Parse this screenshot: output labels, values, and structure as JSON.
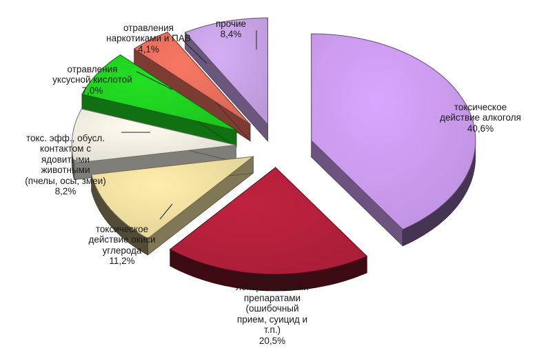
{
  "chart_data": {
    "type": "pie",
    "title": "",
    "exploded": true,
    "style": "3d",
    "slices": [
      {
        "label": "токсическое\nдействие алкоголя",
        "value": 40.6,
        "value_label": "40,6%",
        "color": "#d9a6ff"
      },
      {
        "label": "отравления\nлекарственными\nпрепаратами\n(ошибочный\nприем, суицид и\nт.п.)",
        "value": 20.5,
        "value_label": "20,5%",
        "color": "#c0223e"
      },
      {
        "label": "токсическое\nдействие окиси\nуглерода",
        "value": 11.2,
        "value_label": "11,2%",
        "color": "#ffedab"
      },
      {
        "label": "токс. эфф., обусл.\nконтактом с\nядовитыми\nживотными\n(пчелы, осы, змеи)",
        "value": 8.2,
        "value_label": "8,2%",
        "color": "#fffbef"
      },
      {
        "label": "отравления\nуксусной кислотой",
        "value": 7.0,
        "value_label": "7,0%",
        "color": "#22e022"
      },
      {
        "label": "отравления\nнаркотиками и ПАВ",
        "value": 4.1,
        "value_label": "4,1%",
        "color": "#f77763"
      },
      {
        "label": "прочие",
        "value": 8.4,
        "value_label": "8,4%",
        "color": "#d5aef5"
      }
    ]
  }
}
